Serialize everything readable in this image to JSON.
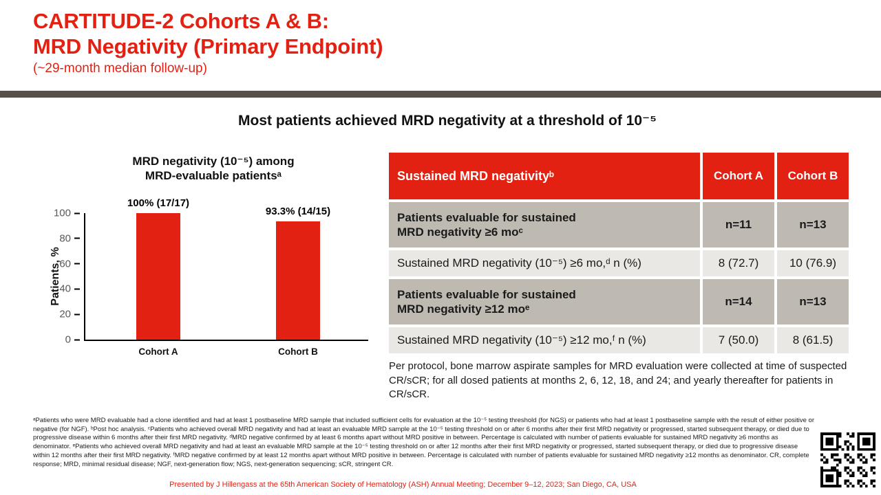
{
  "slide": {
    "title_line1": "CARTITUDE-2 Cohorts A & B:",
    "title_line2": "MRD Negativity (Primary Endpoint)",
    "subtitle": "(~29-month median follow-up)",
    "headline": "Most patients achieved MRD negativity at a threshold of 10⁻⁵",
    "footer": "Presented by J Hillengass at the 65th American Society of Hematology (ASH) Annual Meeting; December 9–12, 2023; San Diego, CA, USA"
  },
  "colors": {
    "accent_red": "#E32112",
    "divider": "#57504A",
    "row_gray": "#BEB9B1",
    "row_light": "#E9E8E4",
    "tick_gray": "#595959"
  },
  "chart_data": {
    "type": "bar",
    "title": "MRD negativity (10⁻⁵) among\nMRD-evaluable patientsᵃ",
    "categories": [
      "Cohort A",
      "Cohort B"
    ],
    "values": [
      100,
      93.3
    ],
    "bar_labels": [
      "100% (17/17)",
      "93.3% (14/15)"
    ],
    "ylabel": "Patients, %",
    "yticks": [
      0,
      20,
      40,
      60,
      80,
      100
    ],
    "ylim": [
      0,
      100
    ],
    "bar_color": "#E32112",
    "grid": "off",
    "legend": "none"
  },
  "table": {
    "header": {
      "label": "Sustained MRD negativityᵇ",
      "col_a": "Cohort A",
      "col_b": "Cohort B"
    },
    "rows": [
      {
        "label": "Patients evaluable for sustained\nMRD negativity ≥6 moᶜ",
        "a": "n=11",
        "b": "n=13",
        "bold": true
      },
      {
        "label": "Sustained MRD negativity (10⁻⁵) ≥6 mo,ᵈ n (%)",
        "a": "8 (72.7)",
        "b": "10 (76.9)",
        "bold": false
      },
      {
        "label": "Patients evaluable for sustained\nMRD negativity ≥12 moᵉ",
        "a": "n=14",
        "b": "n=13",
        "bold": true
      },
      {
        "label": "Sustained MRD negativity (10⁻⁵) ≥12 mo,ᶠ n (%)",
        "a": "7 (50.0)",
        "b": "8 (61.5)",
        "bold": false
      }
    ],
    "note": "Per protocol, bone marrow aspirate samples for MRD evaluation were collected at time of suspected CR/sCR; for all dosed patients at months 2, 6, 12, 18, and 24; and yearly thereafter for patients in CR/sCR."
  },
  "footnotes": "ᵃPatients who were MRD evaluable had a clone identified and had at least 1 postbaseline MRD sample that included sufficient cells for evaluation at the 10⁻⁵ testing threshold (for NGS) or patients who had at least 1 postbaseline sample with the result of either positive or negative (for NGF). ᵇPost hoc analysis. ᶜPatients who achieved overall MRD negativity and had at least an evaluable MRD sample at the 10⁻⁵ testing threshold on or after 6 months after their first MRD negativity or progressed, started subsequent therapy, or died due to progressive disease within 6 months after their first MRD negativity. ᵈMRD negative confirmed by at least 6 months apart without MRD positive in between. Percentage is calculated with number of patients evaluable for sustained MRD negativity ≥6 months as denominator. ᵉPatients who achieved overall MRD negativity and had at least an evaluable MRD sample at the 10⁻⁵ testing threshold on or after 12 months after their first MRD negativity or progressed, started subsequent therapy, or died due to progressive disease within 12 months after their first MRD negativity. ᶠMRD negative confirmed by at least 12 months apart without MRD positive in between. Percentage is calculated with number of patients evaluable for sustained MRD negativity ≥12 months as denominator. CR, complete response; MRD, minimal residual disease; NGF, next-generation flow; NGS, next-generation sequencing; sCR, stringent CR."
}
